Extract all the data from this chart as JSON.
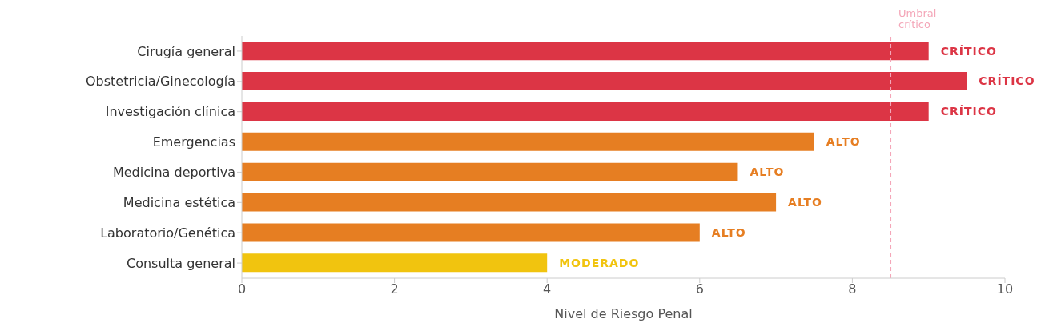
{
  "chart_data": {
    "type": "bar",
    "orientation": "horizontal",
    "xlabel": "Nivel de Riesgo Penal",
    "categories": [
      "Cirugía general",
      "Obstetricia/Ginecología",
      "Investigación clínica",
      "Emergencias",
      "Medicina deportiva",
      "Medicina estética",
      "Laboratorio/Genética",
      "Consulta general"
    ],
    "values": [
      9,
      9.5,
      9,
      7.5,
      6.5,
      7,
      6,
      4
    ],
    "colors": [
      "#dc3545",
      "#dc3545",
      "#dc3545",
      "#e67e22",
      "#e67e22",
      "#e67e22",
      "#e67e22",
      "#f1c40f"
    ],
    "value_labels": [
      "CRÍTICO",
      "CRÍTICO",
      "CRÍTICO",
      "ALTO",
      "ALTO",
      "ALTO",
      "ALTO",
      "MODERADO"
    ],
    "xlim": [
      0,
      10
    ],
    "xticks": [
      0,
      2,
      4,
      6,
      8,
      10
    ],
    "ref_lines": [
      {
        "axis": "x",
        "value": 8.5,
        "label": "Umbral crítico",
        "color": "#f4a6b8",
        "line_style": "dashed"
      }
    ]
  }
}
